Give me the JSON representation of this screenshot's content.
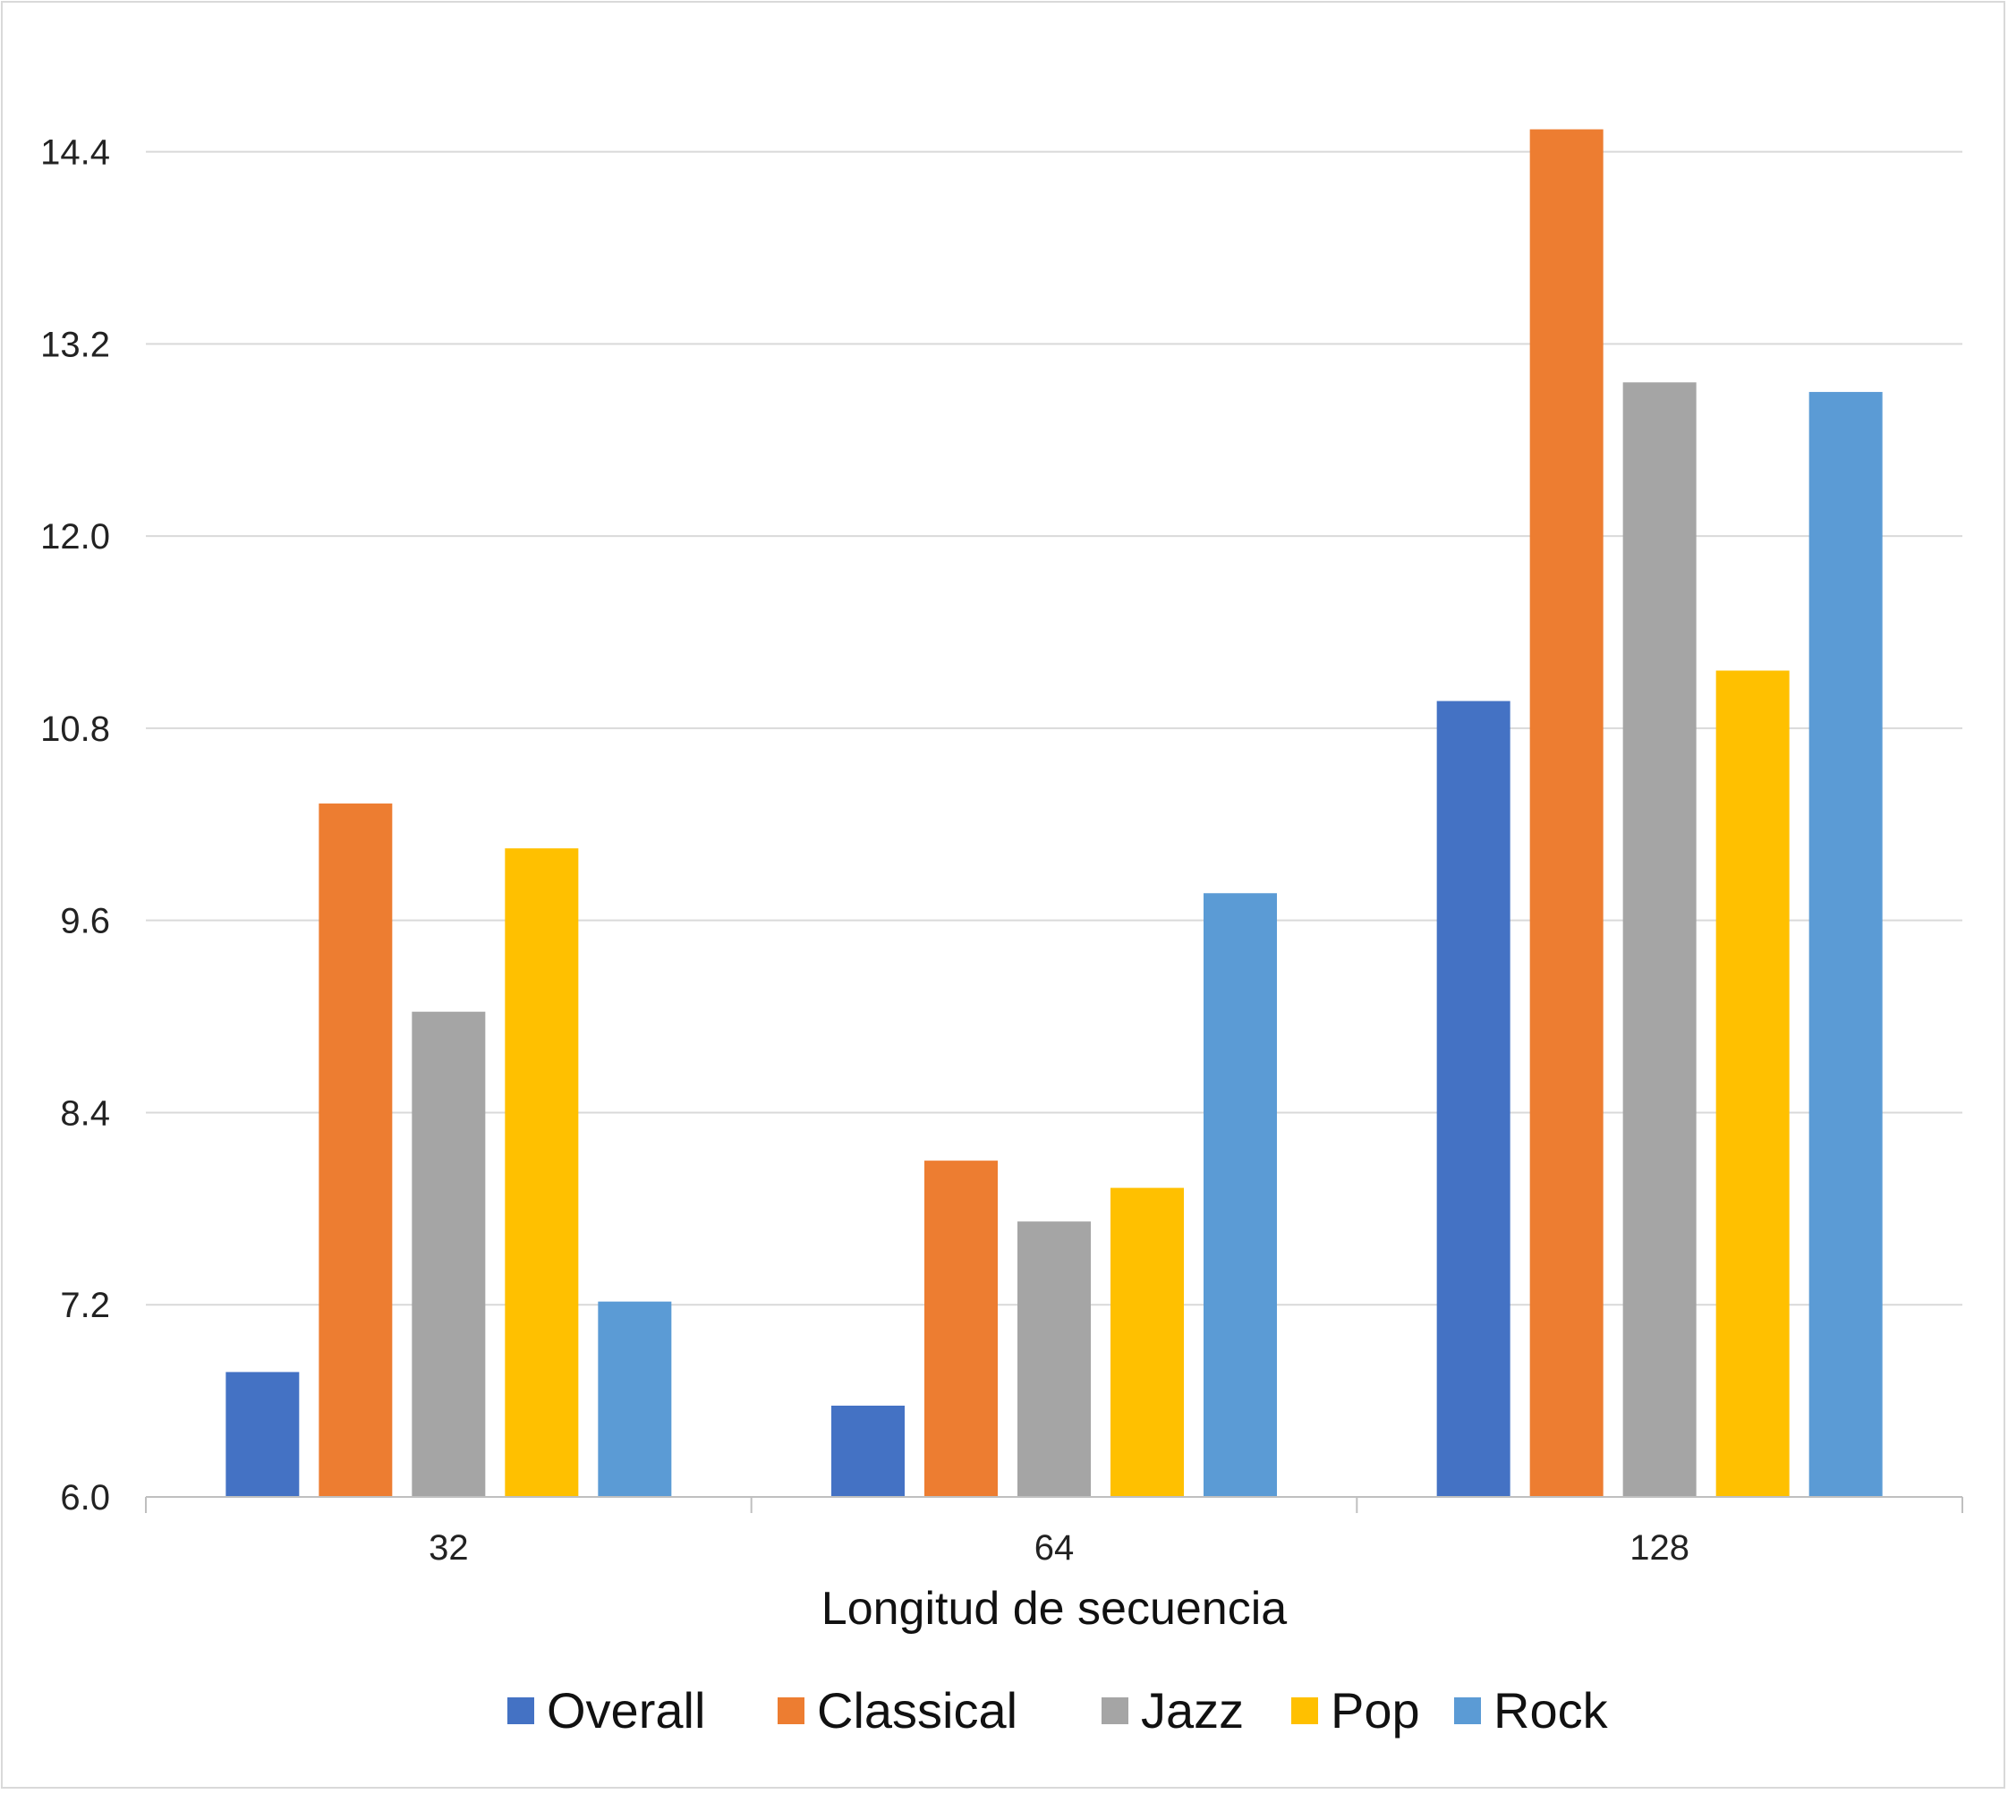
{
  "chart_data": {
    "type": "bar",
    "title": "",
    "xlabel": "Longitud de secuencia",
    "ylabel": "",
    "categories": [
      "32",
      "64",
      "128"
    ],
    "ylim": [
      6.0,
      14.8
    ],
    "yticks": [
      "6.0",
      "7.2",
      "8.4",
      "9.6",
      "10.8",
      "12.0",
      "13.2",
      "14.4"
    ],
    "grid": true,
    "legend_position": "bottom",
    "series": [
      {
        "name": "Overall",
        "color": "#4472C4",
        "values": [
          6.78,
          6.57,
          10.97
        ]
      },
      {
        "name": "Classical",
        "color": "#ED7D31",
        "values": [
          10.33,
          8.1,
          14.54
        ]
      },
      {
        "name": "Jazz",
        "color": "#A5A5A5",
        "values": [
          9.03,
          7.72,
          12.96
        ]
      },
      {
        "name": "Pop",
        "color": "#FFC000",
        "values": [
          10.05,
          7.93,
          11.16
        ]
      },
      {
        "name": "Rock",
        "color": "#5B9BD5",
        "values": [
          7.22,
          9.77,
          12.9
        ]
      }
    ]
  }
}
